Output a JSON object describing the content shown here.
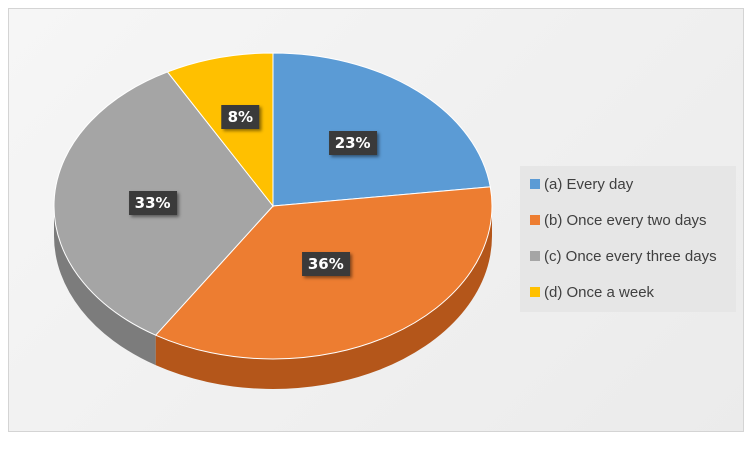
{
  "chart_data": {
    "type": "pie",
    "title": "",
    "start_angle_deg": 0,
    "direction": "clockwise",
    "slices": [
      {
        "label": "(a) Every day",
        "value": 23,
        "value_label": "23%",
        "color": "#5b9bd5",
        "side_color": "#3f7bb4"
      },
      {
        "label": "(b) Once every two days",
        "value": 36,
        "value_label": "36%",
        "color": "#ed7d31",
        "side_color": "#b4561a"
      },
      {
        "label": "(c) Once every three days",
        "value": 33,
        "value_label": "33%",
        "color": "#a5a5a5",
        "side_color": "#7c7c7c"
      },
      {
        "label": "(d) Once a week",
        "value": 8,
        "value_label": "8%",
        "color": "#ffc000",
        "side_color": "#c49000"
      }
    ],
    "legend_position": "right",
    "style": "3d"
  }
}
